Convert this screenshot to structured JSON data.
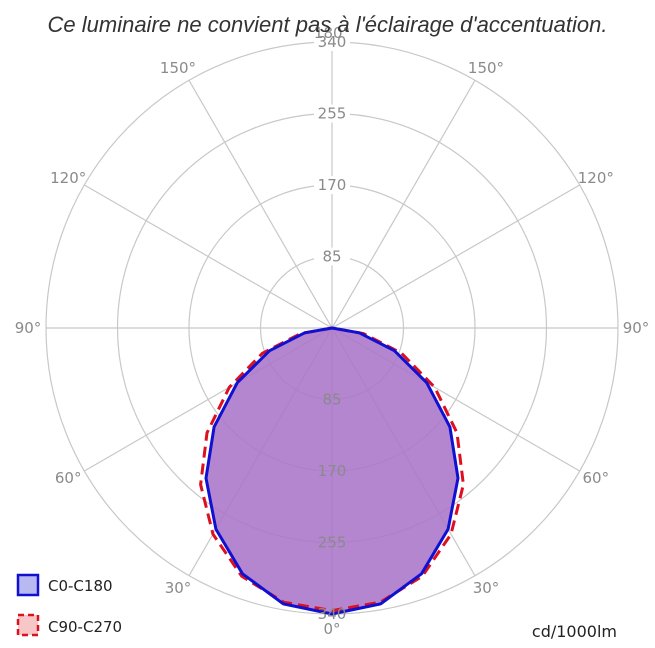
{
  "notice": "Ce luminaire ne convient pas à l'éclairage d'accentuation.",
  "chart_data": {
    "type": "polar",
    "radial_ticks": [
      "85",
      "170",
      "255",
      "340"
    ],
    "radial_max": 340,
    "radial_step": 85,
    "angle_labels": {
      "left": [
        "150°",
        "120°",
        "90°",
        "60°",
        "30°"
      ],
      "right": [
        "150°",
        "120°",
        "90°",
        "60°",
        "30°"
      ],
      "top": "180°",
      "bottom": "0°"
    },
    "unit": "cd/1000lm",
    "colors": {
      "c0": "#1010d0",
      "c90": "#dd1020",
      "fill": "#a875c8",
      "grid": "#c8c8c8",
      "legend_c0_fill": "#b9b9f2",
      "legend_c90_fill": "#f7c6c6"
    },
    "series": [
      {
        "name": "C0-C180",
        "style": "solid",
        "angles": [
          0,
          10,
          20,
          30,
          40,
          50,
          60,
          70,
          80,
          90
        ],
        "values": [
          340,
          333,
          311,
          276,
          233,
          183,
          130,
          79,
          33,
          0
        ]
      },
      {
        "name": "C90-C270",
        "style": "dashed",
        "angles": [
          0,
          10,
          20,
          30,
          40,
          50,
          60,
          70,
          80,
          90
        ],
        "values": [
          336,
          331,
          314,
          283,
          243,
          194,
          141,
          88,
          38,
          0
        ]
      }
    ]
  }
}
